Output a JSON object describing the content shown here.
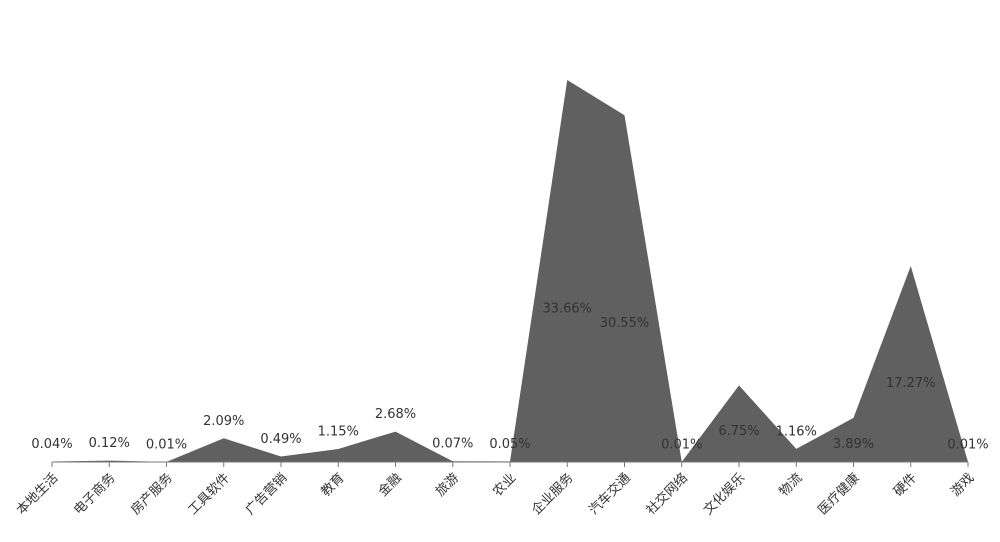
{
  "chart_data": {
    "type": "area",
    "categories": [
      "本地生活",
      "电子商务",
      "房产服务",
      "工具软件",
      "广告营销",
      "教育",
      "金融",
      "旅游",
      "农业",
      "企业服务",
      "汽车交通",
      "社交网络",
      "文化娱乐",
      "物流",
      "医疗健康",
      "硬件",
      "游戏"
    ],
    "values": [
      0.04,
      0.12,
      0.01,
      2.09,
      0.49,
      1.15,
      2.68,
      0.07,
      0.05,
      33.66,
      30.55,
      0.01,
      6.75,
      1.16,
      3.89,
      17.27,
      0.01
    ],
    "value_labels": [
      "0.04%",
      "0.12%",
      "0.01%",
      "2.09%",
      "0.49%",
      "1.15%",
      "2.68%",
      "0.07%",
      "0.05%",
      "33.66%",
      "30.55%",
      "0.01%",
      "6.75%",
      "1.16%",
      "3.89%",
      "17.27%",
      "0.01%"
    ],
    "color": "#606060"
  }
}
